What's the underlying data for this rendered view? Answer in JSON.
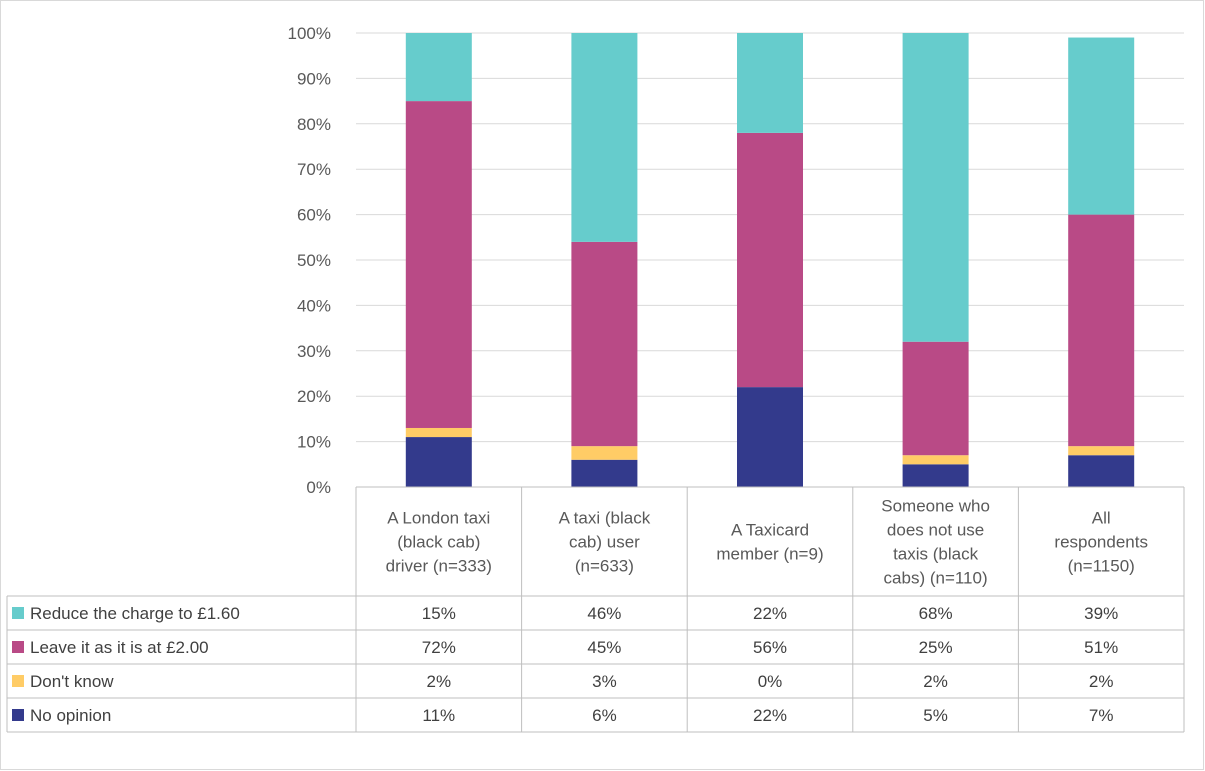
{
  "chart_data": {
    "type": "bar",
    "stacked": true,
    "y_ticks": [
      "0%",
      "10%",
      "20%",
      "30%",
      "40%",
      "50%",
      "60%",
      "70%",
      "80%",
      "90%",
      "100%"
    ],
    "ylim": [
      0,
      100
    ],
    "grid": true,
    "legend_placement": "data-table-left",
    "categories": [
      [
        "A London taxi",
        "(black cab)",
        "driver (n=333)"
      ],
      [
        "A taxi (black",
        "cab) user",
        "(n=633)"
      ],
      [
        "A Taxicard",
        "member (n=9)"
      ],
      [
        "Someone who",
        "does not use",
        "taxis (black",
        "cabs) (n=110)"
      ],
      [
        "All",
        "respondents",
        "(n=1150)"
      ]
    ],
    "series": [
      {
        "name": "Reduce the charge to £1.60",
        "color": "#66cccc",
        "values": [
          15,
          46,
          22,
          68,
          39
        ],
        "labels": [
          "15%",
          "46%",
          "22%",
          "68%",
          "39%"
        ]
      },
      {
        "name": "Leave it as it is at £2.00",
        "color": "#b94a86",
        "values": [
          72,
          45,
          56,
          25,
          51
        ],
        "labels": [
          "72%",
          "45%",
          "56%",
          "25%",
          "51%"
        ]
      },
      {
        "name": "Don't know",
        "color": "#ffcc66",
        "values": [
          2,
          3,
          0,
          2,
          2
        ],
        "labels": [
          "2%",
          "3%",
          "0%",
          "2%",
          "2%"
        ]
      },
      {
        "name": "No opinion",
        "color": "#333a8c",
        "values": [
          11,
          6,
          22,
          5,
          7
        ],
        "labels": [
          "11%",
          "6%",
          "22%",
          "5%",
          "7%"
        ]
      }
    ]
  }
}
